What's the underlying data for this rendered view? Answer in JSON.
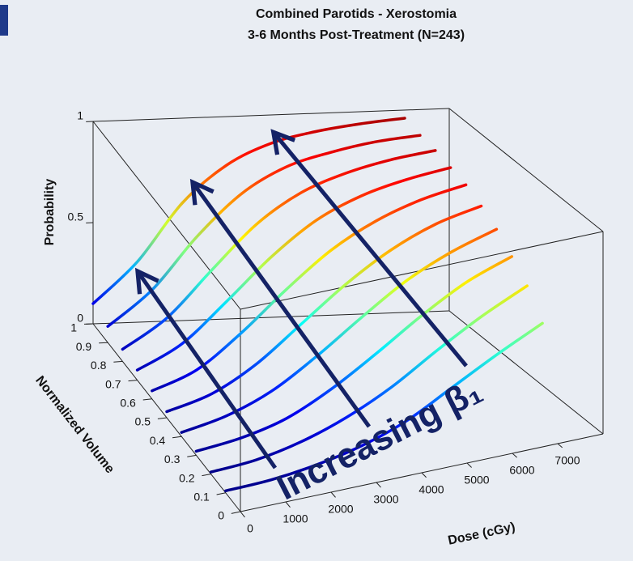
{
  "chart_data": {
    "type": "line3d",
    "title": "Combined Parotids - Xerostomia",
    "subtitle": "3-6 Months Post-Treatment (N=243)",
    "xlabel": "Dose (cGy)",
    "ylabel": "Normalized Volume",
    "zlabel": "Probability",
    "annotation": "Increasing β₁",
    "x": [
      0,
      1000,
      2000,
      3000,
      4000,
      5000,
      6000,
      7000
    ],
    "xlim": [
      0,
      8000
    ],
    "xticks": [
      0,
      1000,
      2000,
      3000,
      4000,
      5000,
      6000,
      7000
    ],
    "ylim": [
      0,
      1
    ],
    "yticks": [
      0,
      0.1,
      0.2,
      0.3,
      0.4,
      0.5,
      0.6,
      0.7,
      0.8,
      0.9,
      1
    ],
    "zlim": [
      0,
      1
    ],
    "zticks": [
      0,
      0.5,
      1
    ],
    "colormap": "jet",
    "series": [
      {
        "volume": 1.0,
        "values": [
          0.1,
          0.3,
          0.58,
          0.76,
          0.86,
          0.91,
          0.94,
          0.96
        ]
      },
      {
        "volume": 0.9,
        "values": [
          0.08,
          0.25,
          0.5,
          0.7,
          0.82,
          0.88,
          0.92,
          0.94
        ]
      },
      {
        "volume": 0.8,
        "values": [
          0.06,
          0.2,
          0.42,
          0.63,
          0.77,
          0.85,
          0.9,
          0.93
        ]
      },
      {
        "volume": 0.7,
        "values": [
          0.05,
          0.16,
          0.35,
          0.55,
          0.71,
          0.81,
          0.87,
          0.91
        ]
      },
      {
        "volume": 0.6,
        "values": [
          0.04,
          0.12,
          0.28,
          0.47,
          0.64,
          0.76,
          0.84,
          0.89
        ]
      },
      {
        "volume": 0.5,
        "values": [
          0.03,
          0.09,
          0.21,
          0.38,
          0.55,
          0.69,
          0.79,
          0.85
        ]
      },
      {
        "volume": 0.4,
        "values": [
          0.02,
          0.07,
          0.16,
          0.3,
          0.46,
          0.61,
          0.72,
          0.8
        ]
      },
      {
        "volume": 0.3,
        "values": [
          0.02,
          0.05,
          0.11,
          0.22,
          0.36,
          0.51,
          0.64,
          0.73
        ]
      },
      {
        "volume": 0.2,
        "values": [
          0.01,
          0.03,
          0.08,
          0.16,
          0.27,
          0.41,
          0.54,
          0.65
        ]
      },
      {
        "volume": 0.1,
        "values": [
          0.01,
          0.02,
          0.05,
          0.1,
          0.18,
          0.3,
          0.42,
          0.53
        ]
      }
    ]
  }
}
